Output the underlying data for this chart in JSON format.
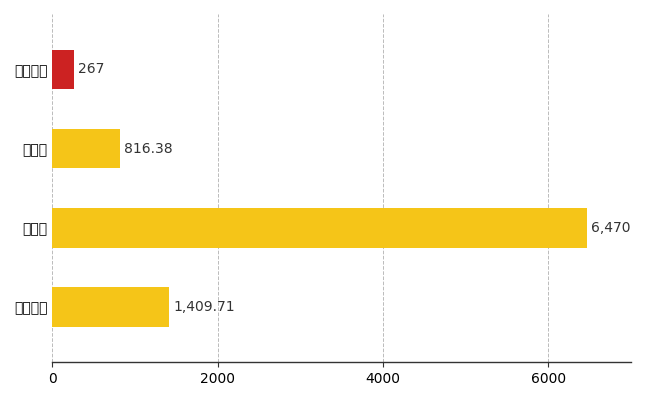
{
  "categories": [
    "田舎館村",
    "県平均",
    "県最大",
    "全国平均"
  ],
  "values": [
    267,
    816.38,
    6470,
    1409.71
  ],
  "bar_colors": [
    "#cc2222",
    "#f5c518",
    "#f5c518",
    "#f5c518"
  ],
  "labels": [
    "267",
    "816.38",
    "6,470",
    "1,409.71"
  ],
  "xlim": [
    0,
    7000
  ],
  "xticks": [
    0,
    2000,
    4000,
    6000
  ],
  "bar_height": 0.5,
  "background_color": "#ffffff",
  "label_fontsize": 10,
  "tick_fontsize": 10,
  "grid_color": "#bbbbbb"
}
